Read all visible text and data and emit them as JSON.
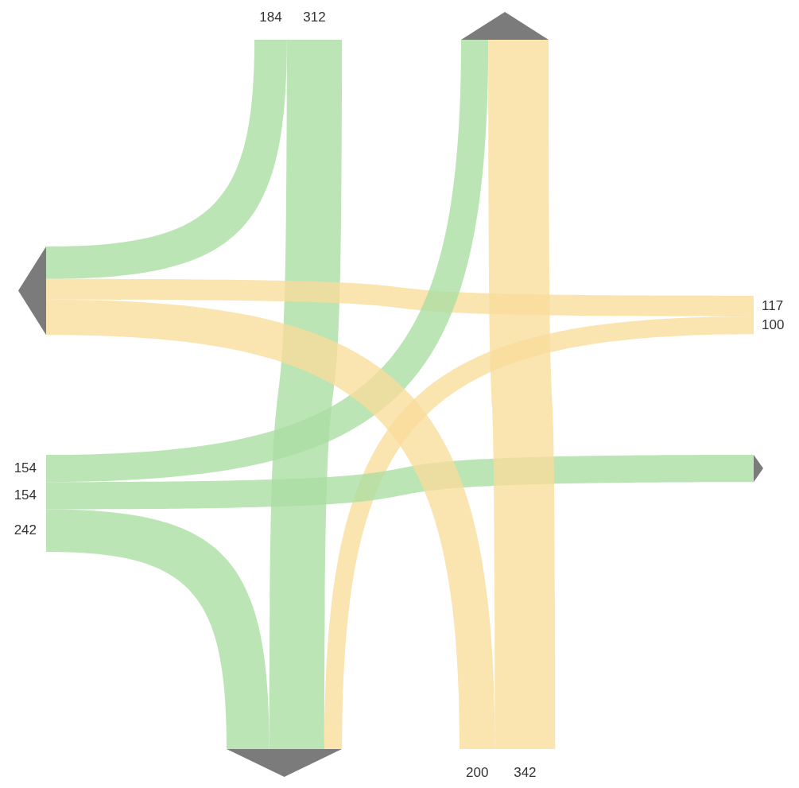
{
  "chart_data": {
    "type": "other",
    "categories": [
      null,
      null,
      null,
      null,
      null,
      null,
      null,
      null,
      null
    ],
    "values": [
      184,
      312,
      117,
      100,
      154,
      154,
      242,
      200,
      342
    ],
    "colors": [
      "#a9dea2",
      "#a9dea2",
      "#f8dc9a",
      "#f8dc9a",
      "#a9dea2",
      "#a9dea2",
      "#a9dea2",
      "#f8dc9a",
      "#f8dc9a"
    ],
    "data_labels": true
  }
}
